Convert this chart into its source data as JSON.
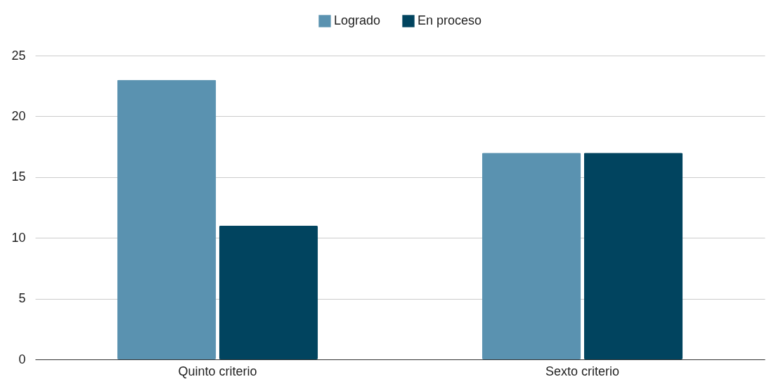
{
  "chart_data": {
    "type": "bar",
    "categories": [
      "Quinto criterio",
      "Sexto criterio"
    ],
    "series": [
      {
        "name": "Logrado",
        "color": "#5a92b0",
        "values": [
          23,
          17
        ]
      },
      {
        "name": "En proceso",
        "color": "#01445f",
        "values": [
          11,
          17
        ]
      }
    ],
    "ylim": [
      0,
      25
    ],
    "yticks": [
      0,
      5,
      10,
      15,
      20,
      25
    ],
    "grid": "y",
    "legend": "top"
  }
}
